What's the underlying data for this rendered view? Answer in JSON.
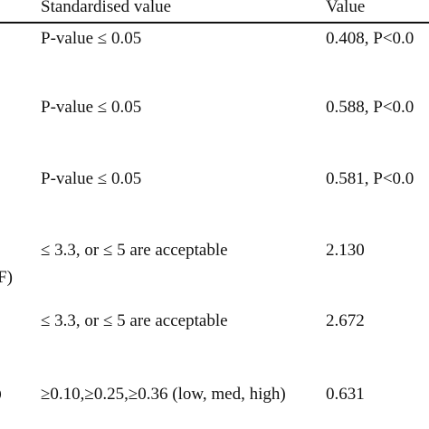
{
  "table": {
    "headers": {
      "standardised": "Standardised value",
      "value": "Value"
    },
    "rows": [
      {
        "left_fragment": "",
        "standard": "P-value ≤ 0.05",
        "value": "0.408, P<0.0"
      },
      {
        "left_fragment": "",
        "standard": "P-value ≤ 0.05",
        "value": "0.588, P<0.0"
      },
      {
        "left_fragment": "",
        "standard": "P-value ≤ 0.05",
        "value": "0.581, P<0.0"
      },
      {
        "left_fragment": "",
        "standard": "≤ 3.3, or ≤ 5 are acceptable",
        "value": "2.130"
      },
      {
        "left_fragment": "F)",
        "standard": "≤ 3.3, or ≤ 5 are acceptable",
        "value": "2.672"
      },
      {
        "left_fragment": ")",
        "standard": "≥0.10,≥0.25,≥0.36 (low, med, high)",
        "value": "0.631"
      }
    ]
  }
}
